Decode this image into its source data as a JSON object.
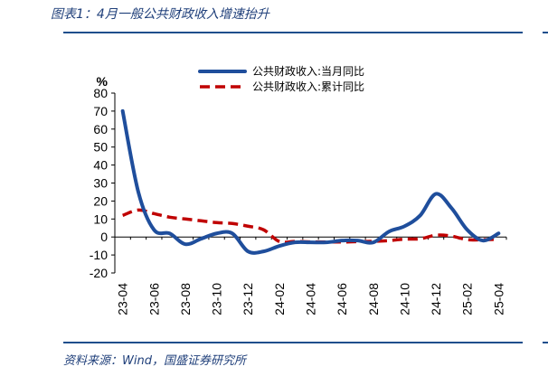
{
  "header": {
    "title": "图表1：4月一般公共财政收入增速抬升"
  },
  "footer": {
    "source": "资料来源：Wind，国盛证券研究所"
  },
  "chart_data": {
    "type": "line",
    "ylabel": "%",
    "ylim": [
      -20,
      80
    ],
    "yticks": [
      80,
      70,
      60,
      50,
      40,
      30,
      20,
      10,
      0,
      -10,
      -20
    ],
    "x_tick_labels": [
      "23-04",
      "23-06",
      "23-08",
      "23-10",
      "23-12",
      "24-02",
      "24-04",
      "24-06",
      "24-08",
      "24-10",
      "24-12",
      "25-02",
      "25-04"
    ],
    "x": [
      "23-04",
      "23-05",
      "23-06",
      "23-07",
      "23-08",
      "23-09",
      "23-10",
      "23-11",
      "23-12",
      "24-01",
      "24-02",
      "24-03",
      "24-04",
      "24-05",
      "24-06",
      "24-07",
      "24-08",
      "24-09",
      "24-10",
      "24-11",
      "24-12",
      "25-01",
      "25-02",
      "25-03",
      "25-04"
    ],
    "legend_position": "top",
    "grid": false,
    "series": [
      {
        "name": "公共财政收入:当月同比",
        "color": "#1f4e9c",
        "style": "solid",
        "values": [
          70,
          25,
          4,
          2,
          -4,
          -1,
          2,
          2,
          -8,
          -8,
          -5,
          -3,
          -3,
          -3,
          -2,
          -2,
          -3,
          3,
          6,
          12,
          24,
          16,
          4,
          -2,
          2
        ]
      },
      {
        "name": "公共财政收入:累计同比",
        "color": "#c00000",
        "style": "dashed",
        "values": [
          12,
          15,
          13,
          11,
          10,
          9,
          8,
          7.5,
          6,
          4,
          -2.5,
          -2.5,
          -2.7,
          -2.8,
          -2.8,
          -2.6,
          -2.4,
          -2,
          -1.2,
          -1,
          1,
          0.5,
          -1.5,
          -1.5,
          -1.3
        ]
      }
    ]
  }
}
